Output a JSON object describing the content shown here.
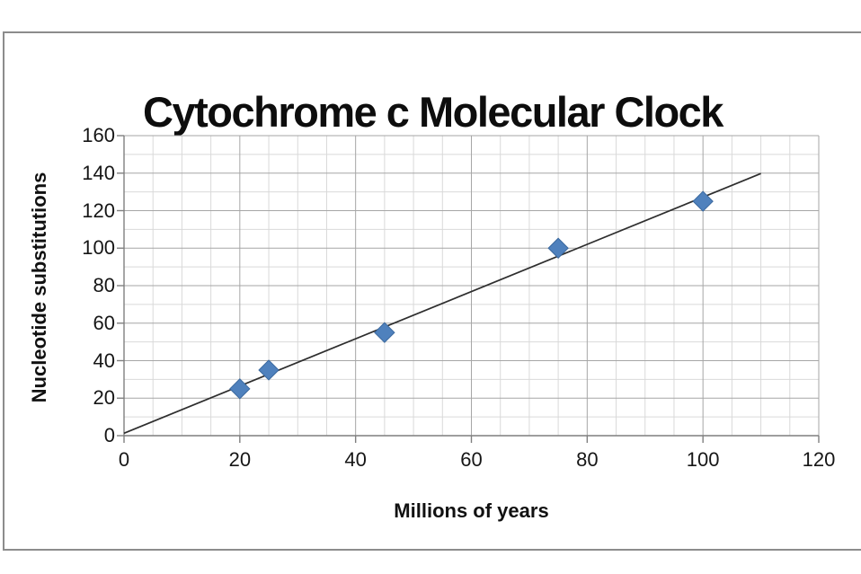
{
  "chart_data": {
    "type": "scatter",
    "title": "Cytochrome c Molecular Clock",
    "xlabel": "Millions of years",
    "ylabel": "Nucleotide substitutions",
    "points": [
      [
        20,
        25
      ],
      [
        25,
        35
      ],
      [
        45,
        55
      ],
      [
        75,
        100
      ],
      [
        100,
        125
      ]
    ],
    "trendline": {
      "x1": 0,
      "y1": 1.3,
      "x2": 110,
      "y2": 139.8
    },
    "xlim": [
      0,
      120
    ],
    "ylim": [
      0,
      160
    ],
    "x_major": 20,
    "x_minor": 5,
    "y_major": 20,
    "y_minor": 10,
    "x_ticks": [
      "0",
      "20",
      "40",
      "60",
      "80",
      "100",
      "120"
    ],
    "y_ticks": [
      "0",
      "20",
      "40",
      "60",
      "80",
      "100",
      "120",
      "140",
      "160"
    ],
    "grid": "major+minor",
    "legend": "none",
    "marker": "diamond",
    "colors": {
      "marker": "#4f81bd",
      "marker_edge": "#3a689e",
      "trendline": "#2e2e2e",
      "grid_major": "#a6a6a6",
      "grid_minor": "#d9d9d9",
      "axis": "#7f7f7f",
      "frame_border": "#8c8c8c",
      "text": "#161616"
    }
  }
}
